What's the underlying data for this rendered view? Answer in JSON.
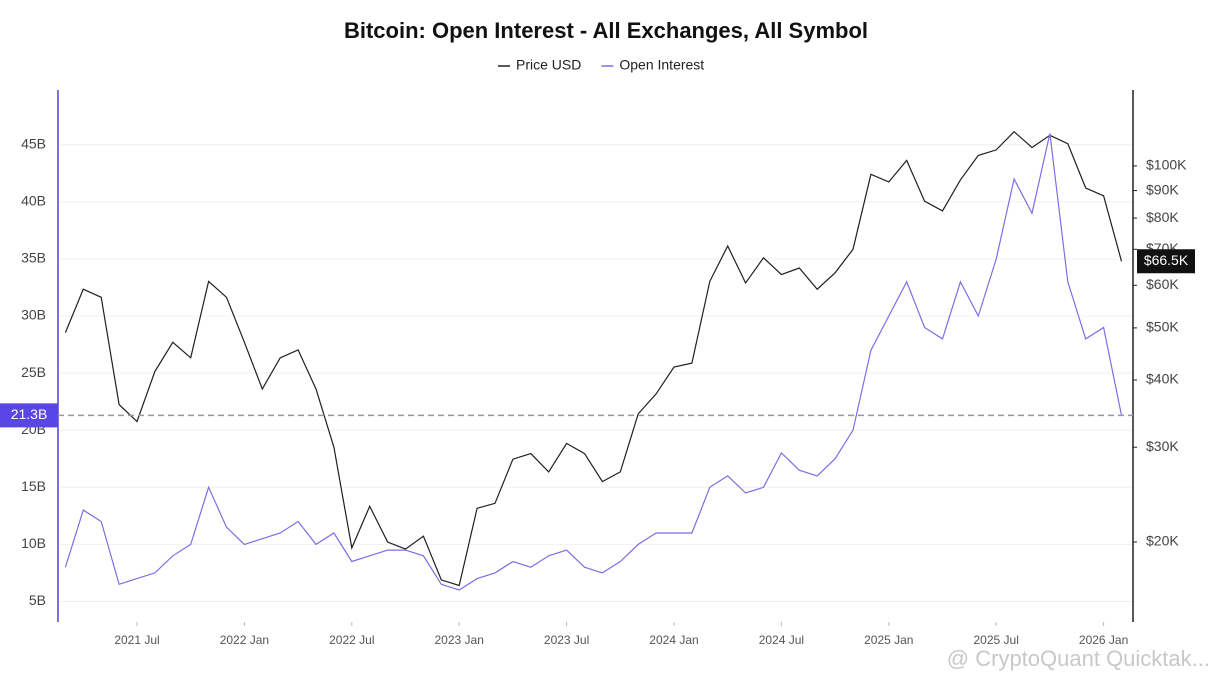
{
  "chart_data": {
    "type": "line",
    "title": "Bitcoin: Open Interest - All Exchanges, All Symbol",
    "watermark": "@ CryptoQuant Quicktak...",
    "x": [
      "2021-03",
      "2021-04",
      "2021-05",
      "2021-06",
      "2021-07",
      "2021-08",
      "2021-09",
      "2021-10",
      "2021-11",
      "2021-12",
      "2022-01",
      "2022-02",
      "2022-03",
      "2022-04",
      "2022-05",
      "2022-06",
      "2022-07",
      "2022-08",
      "2022-09",
      "2022-10",
      "2022-11",
      "2022-12",
      "2023-01",
      "2023-02",
      "2023-03",
      "2023-04",
      "2023-05",
      "2023-06",
      "2023-07",
      "2023-08",
      "2023-09",
      "2023-10",
      "2023-11",
      "2023-12",
      "2024-01",
      "2024-02",
      "2024-03",
      "2024-04",
      "2024-05",
      "2024-06",
      "2024-07",
      "2024-08",
      "2024-09",
      "2024-10",
      "2024-11",
      "2024-12",
      "2025-01",
      "2025-02",
      "2025-03",
      "2025-04",
      "2025-05",
      "2025-06",
      "2025-07",
      "2025-08",
      "2025-09",
      "2025-10",
      "2025-11",
      "2025-12",
      "2026-01",
      "2026-02"
    ],
    "xlim": [
      "2021-03",
      "2026-02"
    ],
    "xticks": [
      {
        "value": "2021-07",
        "label": "2021 Jul"
      },
      {
        "value": "2022-01",
        "label": "2022 Jan"
      },
      {
        "value": "2022-07",
        "label": "2022 Jul"
      },
      {
        "value": "2023-01",
        "label": "2023 Jan"
      },
      {
        "value": "2023-07",
        "label": "2023 Jul"
      },
      {
        "value": "2024-01",
        "label": "2024 Jan"
      },
      {
        "value": "2024-07",
        "label": "2024 Jul"
      },
      {
        "value": "2025-01",
        "label": "2025 Jan"
      },
      {
        "value": "2025-07",
        "label": "2025 Jul"
      },
      {
        "value": "2026-01",
        "label": "2026 Jan"
      }
    ],
    "ylim": [
      3.2,
      49.8
    ],
    "yticks": [
      {
        "value": 5,
        "label": "5B"
      },
      {
        "value": 10,
        "label": "10B"
      },
      {
        "value": 15,
        "label": "15B"
      },
      {
        "value": 20,
        "label": "20B"
      },
      {
        "value": 25,
        "label": "25B"
      },
      {
        "value": 30,
        "label": "30B"
      },
      {
        "value": 35,
        "label": "35B"
      },
      {
        "value": 40,
        "label": "40B"
      },
      {
        "value": 45,
        "label": "45B"
      }
    ],
    "y2lim": [
      14200,
      138400
    ],
    "y2scale": "log",
    "y2ticks": [
      {
        "value": 20000,
        "label": "$20K"
      },
      {
        "value": 30000,
        "label": "$30K"
      },
      {
        "value": 40000,
        "label": "$40K"
      },
      {
        "value": 50000,
        "label": "$50K"
      },
      {
        "value": 60000,
        "label": "$60K"
      },
      {
        "value": 70000,
        "label": "$70K"
      },
      {
        "value": 80000,
        "label": "$80K"
      },
      {
        "value": 90000,
        "label": "$90K"
      },
      {
        "value": 100000,
        "label": "$100K"
      }
    ],
    "grid": true,
    "legend": "top",
    "series": [
      {
        "name": "Price USD",
        "color": "#1f1f1f",
        "axis": "y2",
        "last_label": "$66.5K",
        "values": [
          49000,
          59000,
          57000,
          36000,
          33500,
          41500,
          47000,
          44000,
          61000,
          57000,
          47000,
          38500,
          44000,
          45500,
          38500,
          30000,
          19500,
          23300,
          20000,
          19400,
          20500,
          17000,
          16600,
          23100,
          23600,
          28500,
          29200,
          27000,
          30500,
          29200,
          25900,
          27000,
          34600,
          37700,
          42300,
          43000,
          61000,
          71000,
          60600,
          67500,
          62800,
          64600,
          59000,
          63300,
          70000,
          96500,
          93400,
          102400,
          86000,
          82500,
          94200,
          104600,
          107100,
          115800,
          108200,
          114000,
          110000,
          91000,
          88000,
          66500
        ]
      },
      {
        "name": "Open Interest",
        "color": "#7b6ee6",
        "last_label": "21.3B",
        "values": [
          8,
          13,
          12,
          6.5,
          7,
          7.5,
          9,
          10,
          15,
          11.5,
          10,
          10.5,
          11,
          12,
          10,
          11,
          8.5,
          9,
          9.5,
          9.5,
          9,
          6.5,
          6,
          7,
          7.5,
          8.5,
          8,
          9,
          9.5,
          8,
          7.5,
          8.5,
          10,
          11,
          11,
          11,
          15,
          16,
          14.5,
          15,
          18,
          16.5,
          16,
          17.5,
          20,
          27,
          30,
          33,
          29,
          28,
          33,
          30,
          35,
          42,
          39,
          46,
          33,
          28,
          29,
          21.3
        ]
      }
    ]
  }
}
